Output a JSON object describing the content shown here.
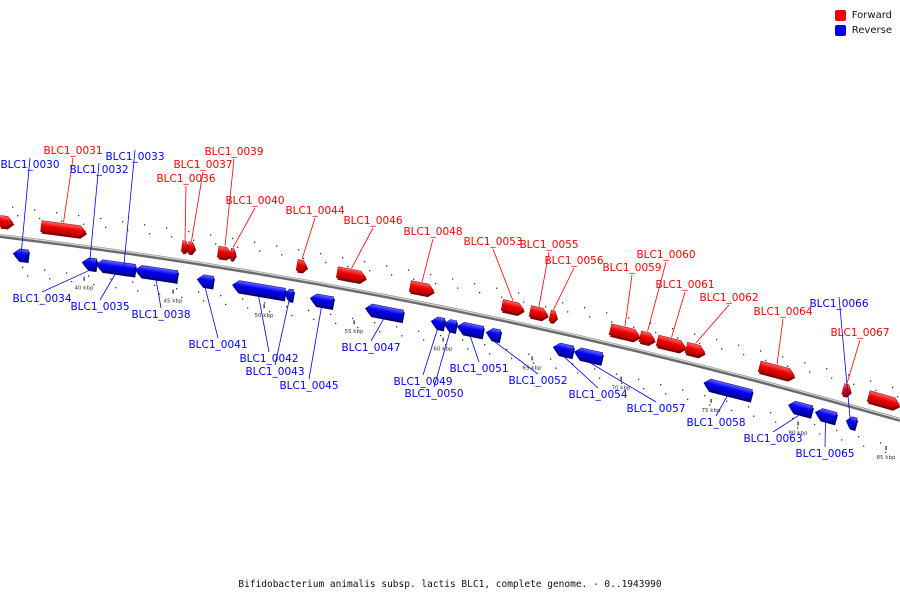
{
  "legend": {
    "forward": {
      "label": "Forward",
      "color": "#ff0000"
    },
    "reverse": {
      "label": "Reverse",
      "color": "#0000ff"
    }
  },
  "caption": "Bifidobacterium animalis subsp. lactis BLC1, complete genome. - 0..1943990",
  "axis_ticks": [
    "40 kbp",
    "45 kbp",
    "50 kbp",
    "55 kbp",
    "60 kbp",
    "65 kbp",
    "70 kbp",
    "75 kbp",
    "80 kbp",
    "85 kbp"
  ],
  "genes": [
    {
      "id": "BLC1_0030",
      "strand": "reverse"
    },
    {
      "id": "BLC1_0031",
      "strand": "forward"
    },
    {
      "id": "BLC1_0032",
      "strand": "reverse"
    },
    {
      "id": "BLC1_0033",
      "strand": "reverse"
    },
    {
      "id": "BLC1_0034",
      "strand": "reverse"
    },
    {
      "id": "BLC1_0035",
      "strand": "reverse"
    },
    {
      "id": "BLC1_0036",
      "strand": "forward"
    },
    {
      "id": "BLC1_0037",
      "strand": "forward"
    },
    {
      "id": "BLC1_0038",
      "strand": "reverse"
    },
    {
      "id": "BLC1_0039",
      "strand": "forward"
    },
    {
      "id": "BLC1_0040",
      "strand": "forward"
    },
    {
      "id": "BLC1_0041",
      "strand": "reverse"
    },
    {
      "id": "BLC1_0042",
      "strand": "reverse"
    },
    {
      "id": "BLC1_0043",
      "strand": "reverse"
    },
    {
      "id": "BLC1_0044",
      "strand": "forward"
    },
    {
      "id": "BLC1_0045",
      "strand": "reverse"
    },
    {
      "id": "BLC1_0046",
      "strand": "forward"
    },
    {
      "id": "BLC1_0047",
      "strand": "reverse"
    },
    {
      "id": "BLC1_0048",
      "strand": "forward"
    },
    {
      "id": "BLC1_0049",
      "strand": "reverse"
    },
    {
      "id": "BLC1_0050",
      "strand": "reverse"
    },
    {
      "id": "BLC1_0051",
      "strand": "reverse"
    },
    {
      "id": "BLC1_0052",
      "strand": "reverse"
    },
    {
      "id": "BLC1_0053",
      "strand": "forward"
    },
    {
      "id": "BLC1_0054",
      "strand": "reverse"
    },
    {
      "id": "BLC1_0055",
      "strand": "forward"
    },
    {
      "id": "BLC1_0056",
      "strand": "forward"
    },
    {
      "id": "BLC1_0057",
      "strand": "reverse"
    },
    {
      "id": "BLC1_0058",
      "strand": "reverse"
    },
    {
      "id": "BLC1_0059",
      "strand": "forward"
    },
    {
      "id": "BLC1_0060",
      "strand": "forward"
    },
    {
      "id": "BLC1_0061",
      "strand": "forward"
    },
    {
      "id": "BLC1_0062",
      "strand": "forward"
    },
    {
      "id": "BLC1_0063",
      "strand": "reverse"
    },
    {
      "id": "BLC1_0064",
      "strand": "forward"
    },
    {
      "id": "BLC1_0065",
      "strand": "reverse"
    },
    {
      "id": "BLC1_0066",
      "strand": "reverse"
    },
    {
      "id": "BLC1_0067",
      "strand": "forward"
    }
  ]
}
